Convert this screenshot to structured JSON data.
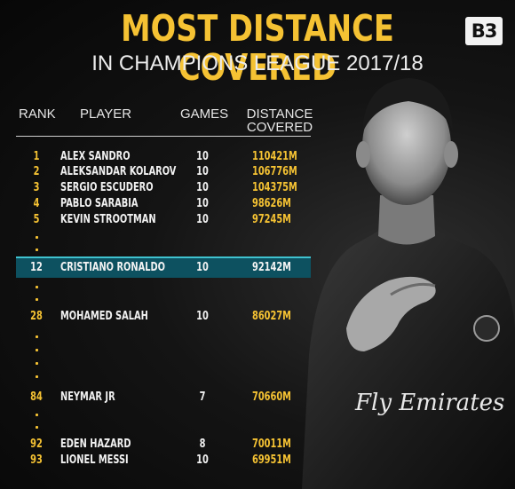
{
  "header": {
    "title": "MOST DISTANCE COVERED",
    "subtitle": "IN CHAMPIONS LEAGUE 2017/18",
    "logo": "B3"
  },
  "table": {
    "columns": {
      "rank": "RANK",
      "player": "PLAYER",
      "games": "GAMES",
      "distance_line1": "DISTANCE",
      "distance_line2": "COVERED"
    },
    "rows": [
      {
        "rank": "1",
        "player": "ALEX SANDRO",
        "games": "10",
        "distance": "110421M"
      },
      {
        "rank": "2",
        "player": "ALEKSANDAR KOLAROV",
        "games": "10",
        "distance": "106776M"
      },
      {
        "rank": "3",
        "player": "SERGIO ESCUDERO",
        "games": "10",
        "distance": "104375M"
      },
      {
        "rank": "4",
        "player": "PABLO SARABIA",
        "games": "10",
        "distance": "98626M"
      },
      {
        "rank": "5",
        "player": "KEVIN STROOTMAN",
        "games": "10",
        "distance": "97245M"
      },
      {
        "rank": "12",
        "player": "CRISTIANO RONALDO",
        "games": "10",
        "distance": "92142M"
      },
      {
        "rank": "28",
        "player": "MOHAMED SALAH",
        "games": "10",
        "distance": "86027M"
      },
      {
        "rank": "84",
        "player": "NEYMAR JR",
        "games": "7",
        "distance": "70660M"
      },
      {
        "rank": "92",
        "player": "EDEN HAZARD",
        "games": "8",
        "distance": "70011M"
      },
      {
        "rank": "93",
        "player": "LIONEL MESSI",
        "games": "10",
        "distance": "69951M"
      }
    ],
    "highlighted_rank": "12"
  },
  "photo": {
    "subject": "player-photo",
    "shirt_text": "Fly Emirates"
  },
  "colors": {
    "accent": "#f5c233",
    "highlight_band": "#0d5160",
    "highlight_border": "#3fc2cf",
    "background": "#0b0b0b"
  }
}
